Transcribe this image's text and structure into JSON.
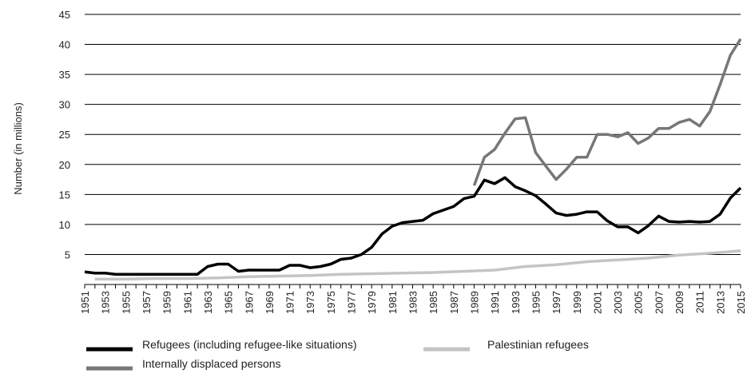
{
  "chart_data": {
    "type": "line",
    "ylabel": "Number (in millions)",
    "xlabel": "",
    "title": "",
    "ylim": [
      0,
      45
    ],
    "xlim": [
      1951,
      2015
    ],
    "yticks": [
      5,
      10,
      15,
      20,
      25,
      30,
      35,
      40,
      45
    ],
    "xticks": [
      "1951",
      "1953",
      "1955",
      "1957",
      "1959",
      "1961",
      "1963",
      "1965",
      "1967",
      "1969",
      "1971",
      "1973",
      "1975",
      "1977",
      "1979",
      "1981",
      "1983",
      "1985",
      "1987",
      "1989",
      "1991",
      "1993",
      "1995",
      "1997",
      "1999",
      "2001",
      "2003",
      "2005",
      "2007",
      "2009",
      "2011",
      "2013",
      "2015"
    ],
    "grid": "horizontal",
    "legend_position": "bottom",
    "series": [
      {
        "name": "Refugees (including refugee-like situations)",
        "color": "#000000",
        "x": [
          1951,
          1952,
          1953,
          1954,
          1955,
          1956,
          1957,
          1958,
          1959,
          1960,
          1961,
          1962,
          1963,
          1964,
          1965,
          1966,
          1967,
          1968,
          1969,
          1970,
          1971,
          1972,
          1973,
          1974,
          1975,
          1976,
          1977,
          1978,
          1979,
          1980,
          1981,
          1982,
          1983,
          1984,
          1985,
          1986,
          1987,
          1988,
          1989,
          1990,
          1991,
          1992,
          1993,
          1994,
          1995,
          1996,
          1997,
          1998,
          1999,
          2000,
          2001,
          2002,
          2003,
          2004,
          2005,
          2006,
          2007,
          2008,
          2009,
          2010,
          2011,
          2012,
          2013,
          2014,
          2015
        ],
        "values": [
          2.1,
          1.9,
          1.9,
          1.7,
          1.7,
          1.7,
          1.7,
          1.7,
          1.7,
          1.7,
          1.7,
          1.7,
          3.0,
          3.4,
          3.4,
          2.2,
          2.4,
          2.4,
          2.4,
          2.4,
          3.2,
          3.2,
          2.8,
          3.0,
          3.4,
          4.2,
          4.4,
          5.0,
          6.2,
          8.4,
          9.7,
          10.3,
          10.5,
          10.7,
          11.8,
          12.4,
          13.0,
          14.3,
          14.7,
          17.4,
          16.8,
          17.8,
          16.3,
          15.6,
          14.8,
          13.4,
          11.9,
          11.5,
          11.7,
          12.1,
          12.1,
          10.6,
          9.6,
          9.6,
          8.6,
          9.8,
          11.4,
          10.5,
          10.4,
          10.5,
          10.4,
          10.5,
          11.7,
          14.4,
          16.1
        ]
      },
      {
        "name": "Palestinian refugees",
        "color": "#c4c4c4",
        "x": [
          1952,
          1955,
          1958,
          1961,
          1964,
          1967,
          1970,
          1973,
          1976,
          1979,
          1982,
          1985,
          1988,
          1991,
          1994,
          1997,
          2000,
          2003,
          2006,
          2009,
          2012,
          2015
        ],
        "values": [
          0.9,
          0.9,
          1.0,
          1.0,
          1.1,
          1.3,
          1.4,
          1.5,
          1.7,
          1.8,
          1.9,
          2.0,
          2.2,
          2.4,
          3.0,
          3.3,
          3.8,
          4.1,
          4.4,
          4.9,
          5.2,
          5.6
        ]
      },
      {
        "name": "Internally displaced persons",
        "color": "#777777",
        "x": [
          1989,
          1990,
          1991,
          1992,
          1993,
          1994,
          1995,
          1996,
          1997,
          1998,
          1999,
          2000,
          2001,
          2002,
          2003,
          2004,
          2005,
          2006,
          2007,
          2008,
          2009,
          2010,
          2011,
          2012,
          2013,
          2014,
          2015
        ],
        "values": [
          16.5,
          21.2,
          22.5,
          25.2,
          27.6,
          27.8,
          22.0,
          19.7,
          17.5,
          19.2,
          21.2,
          21.2,
          25.0,
          25.0,
          24.6,
          25.3,
          23.5,
          24.4,
          26.0,
          26.0,
          27.0,
          27.5,
          26.4,
          28.8,
          33.3,
          38.2,
          40.9
        ]
      }
    ]
  }
}
